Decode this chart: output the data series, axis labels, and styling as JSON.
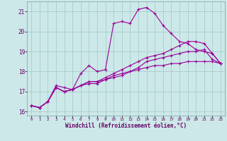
{
  "xlabel": "Windchill (Refroidissement éolien,°C)",
  "bg_color": "#cce8e8",
  "grid_color": "#aacccc",
  "line_color": "#990099",
  "spine_color": "#7799aa",
  "tick_color": "#660066",
  "xlim": [
    -0.5,
    23.5
  ],
  "ylim": [
    15.8,
    21.5
  ],
  "yticks": [
    16,
    17,
    18,
    19,
    20,
    21
  ],
  "xticks": [
    0,
    1,
    2,
    3,
    4,
    5,
    6,
    7,
    8,
    9,
    10,
    11,
    12,
    13,
    14,
    15,
    16,
    17,
    18,
    19,
    20,
    21,
    22,
    23
  ],
  "series": [
    [
      16.3,
      16.2,
      16.5,
      17.3,
      17.2,
      17.1,
      17.9,
      18.3,
      18.0,
      18.1,
      20.4,
      20.5,
      20.4,
      21.1,
      21.2,
      20.9,
      20.3,
      19.9,
      19.5,
      19.4,
      19.1,
      19.0,
      18.9,
      18.4
    ],
    [
      16.3,
      16.2,
      16.5,
      17.2,
      17.0,
      17.1,
      17.3,
      17.4,
      17.4,
      17.6,
      17.8,
      17.9,
      18.0,
      18.1,
      18.2,
      18.3,
      18.3,
      18.4,
      18.4,
      18.5,
      18.5,
      18.5,
      18.5,
      18.4
    ],
    [
      16.3,
      16.2,
      16.5,
      17.2,
      17.0,
      17.1,
      17.3,
      17.5,
      17.5,
      17.6,
      17.7,
      17.8,
      18.0,
      18.2,
      18.5,
      18.6,
      18.7,
      18.8,
      18.9,
      19.0,
      19.0,
      19.1,
      18.6,
      18.4
    ],
    [
      16.3,
      16.2,
      16.5,
      17.2,
      17.0,
      17.1,
      17.3,
      17.5,
      17.5,
      17.7,
      17.9,
      18.1,
      18.3,
      18.5,
      18.7,
      18.8,
      18.9,
      19.1,
      19.3,
      19.5,
      19.5,
      19.4,
      18.9,
      18.4
    ]
  ]
}
